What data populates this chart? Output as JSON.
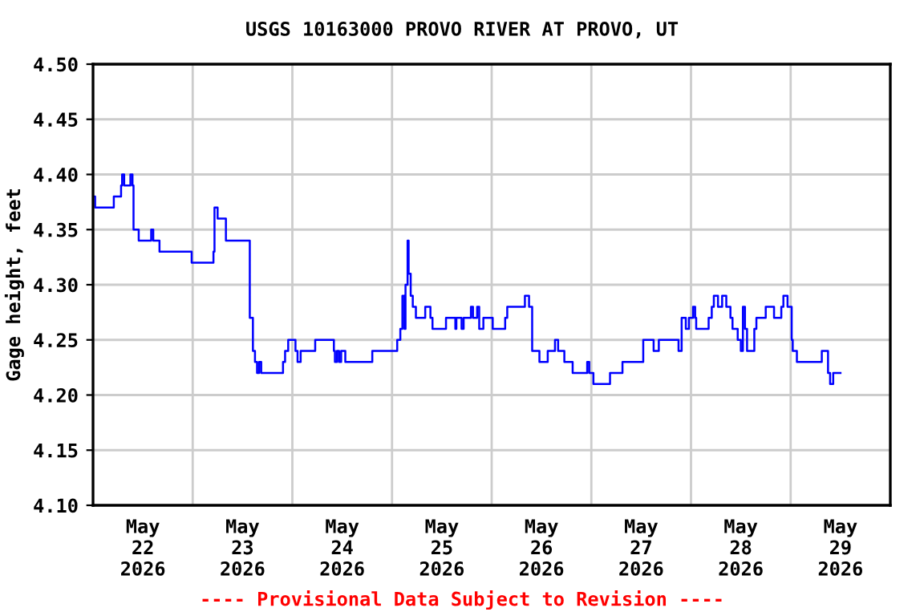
{
  "chart_data": {
    "type": "step",
    "title": "USGS 10163000 PROVO RIVER AT PROVO, UT",
    "ylabel": "Gage height, feet",
    "annotations": [
      "---- Provisional Data Subject to Revision ----"
    ],
    "xlim": [
      "2026-05-22T00:00",
      "2026-05-30T00:00"
    ],
    "xticks": [
      {
        "value": "2026-05-22T12:00",
        "label": "May\n22\n2026"
      },
      {
        "value": "2026-05-23T12:00",
        "label": "May\n23\n2026"
      },
      {
        "value": "2026-05-24T12:00",
        "label": "May\n24\n2026"
      },
      {
        "value": "2026-05-25T12:00",
        "label": "May\n25\n2026"
      },
      {
        "value": "2026-05-26T12:00",
        "label": "May\n26\n2026"
      },
      {
        "value": "2026-05-27T12:00",
        "label": "May\n27\n2026"
      },
      {
        "value": "2026-05-28T12:00",
        "label": "May\n28\n2026"
      },
      {
        "value": "2026-05-29T12:00",
        "label": "May\n29\n2026"
      },
      {
        "value": "2026-05-23T00:00",
        "label": null
      },
      {
        "value": "2026-05-24T00:00",
        "label": null
      },
      {
        "value": "2026-05-25T00:00",
        "label": null
      },
      {
        "value": "2026-05-26T00:00",
        "label": null
      },
      {
        "value": "2026-05-27T00:00",
        "label": null
      },
      {
        "value": "2026-05-28T00:00",
        "label": null
      },
      {
        "value": "2026-05-29T00:00",
        "label": null
      }
    ],
    "ylim": [
      4.1,
      4.5
    ],
    "yticks": [
      {
        "value": 4.1,
        "label": "4.10"
      },
      {
        "value": 4.15,
        "label": "4.15"
      },
      {
        "value": 4.2,
        "label": "4.20"
      },
      {
        "value": 4.25,
        "label": "4.25"
      },
      {
        "value": 4.3,
        "label": "4.30"
      },
      {
        "value": 4.35,
        "label": "4.35"
      },
      {
        "value": 4.4,
        "label": "4.40"
      },
      {
        "value": 4.45,
        "label": "4.45"
      },
      {
        "value": 4.5,
        "label": "4.50"
      }
    ],
    "grid": true,
    "legend": false,
    "series": [
      {
        "color": "#0000ff",
        "x": [
          "2026-05-22T00:15",
          "2026-05-22T00:30",
          "2026-05-22T05:00",
          "2026-05-22T06:45",
          "2026-05-22T07:00",
          "2026-05-22T07:30",
          "2026-05-22T09:00",
          "2026-05-22T09:30",
          "2026-05-22T09:45",
          "2026-05-22T11:00",
          "2026-05-22T14:00",
          "2026-05-22T14:30",
          "2026-05-22T16:00",
          "2026-05-22T23:45",
          "2026-05-23T05:00",
          "2026-05-23T05:15",
          "2026-05-23T06:00",
          "2026-05-23T08:00",
          "2026-05-23T13:45",
          "2026-05-23T14:30",
          "2026-05-23T15:00",
          "2026-05-23T15:30",
          "2026-05-23T16:00",
          "2026-05-23T16:30",
          "2026-05-23T21:45",
          "2026-05-23T22:15",
          "2026-05-23T23:00",
          "2026-05-24T00:45",
          "2026-05-24T01:15",
          "2026-05-24T02:00",
          "2026-05-24T05:30",
          "2026-05-24T10:00",
          "2026-05-24T10:15",
          "2026-05-24T10:45",
          "2026-05-24T11:15",
          "2026-05-24T11:45",
          "2026-05-24T12:45",
          "2026-05-24T19:15",
          "2026-05-25T01:15",
          "2026-05-25T02:00",
          "2026-05-25T02:30",
          "2026-05-25T03:00",
          "2026-05-25T03:15",
          "2026-05-25T03:45",
          "2026-05-25T04:00",
          "2026-05-25T04:30",
          "2026-05-25T05:00",
          "2026-05-25T05:45",
          "2026-05-25T08:00",
          "2026-05-25T09:15",
          "2026-05-25T09:45",
          "2026-05-25T13:00",
          "2026-05-25T15:15",
          "2026-05-25T15:30",
          "2026-05-25T16:45",
          "2026-05-25T17:15",
          "2026-05-25T19:00",
          "2026-05-25T19:30",
          "2026-05-25T20:30",
          "2026-05-25T21:00",
          "2026-05-25T22:00",
          "2026-05-26T00:15",
          "2026-05-26T03:15",
          "2026-05-26T03:45",
          "2026-05-26T08:00",
          "2026-05-26T09:00",
          "2026-05-26T09:45",
          "2026-05-26T11:30",
          "2026-05-26T13:30",
          "2026-05-26T15:15",
          "2026-05-26T16:00",
          "2026-05-26T17:30",
          "2026-05-26T19:30",
          "2026-05-26T23:00",
          "2026-05-26T23:30",
          "2026-05-27T00:30",
          "2026-05-27T04:30",
          "2026-05-27T07:30",
          "2026-05-27T12:30",
          "2026-05-27T15:00",
          "2026-05-27T16:15",
          "2026-05-27T21:00",
          "2026-05-27T21:45",
          "2026-05-27T22:45",
          "2026-05-27T23:30",
          "2026-05-28T00:30",
          "2026-05-28T01:00",
          "2026-05-28T01:15",
          "2026-05-28T04:15",
          "2026-05-28T05:00",
          "2026-05-28T05:30",
          "2026-05-28T06:30",
          "2026-05-28T07:30",
          "2026-05-28T08:30",
          "2026-05-28T09:30",
          "2026-05-28T10:00",
          "2026-05-28T11:15",
          "2026-05-28T12:00",
          "2026-05-28T12:30",
          "2026-05-28T13:00",
          "2026-05-28T13:30",
          "2026-05-28T15:15",
          "2026-05-28T15:45",
          "2026-05-28T18:00",
          "2026-05-28T20:00",
          "2026-05-28T21:45",
          "2026-05-28T22:15",
          "2026-05-28T23:15",
          "2026-05-29T00:15",
          "2026-05-29T00:30",
          "2026-05-29T01:30",
          "2026-05-29T07:30",
          "2026-05-29T09:00",
          "2026-05-29T09:30",
          "2026-05-29T10:15",
          "2026-05-29T12:00"
        ],
        "values": [
          4.38,
          4.37,
          4.38,
          4.39,
          4.4,
          4.39,
          4.4,
          4.39,
          4.35,
          4.34,
          4.35,
          4.34,
          4.33,
          4.32,
          4.33,
          4.37,
          4.36,
          4.34,
          4.27,
          4.24,
          4.23,
          4.22,
          4.23,
          4.22,
          4.23,
          4.24,
          4.25,
          4.24,
          4.23,
          4.24,
          4.25,
          4.24,
          4.23,
          4.24,
          4.23,
          4.24,
          4.23,
          4.24,
          4.25,
          4.26,
          4.29,
          4.26,
          4.3,
          4.34,
          4.31,
          4.29,
          4.28,
          4.27,
          4.28,
          4.27,
          4.26,
          4.27,
          4.26,
          4.27,
          4.26,
          4.27,
          4.28,
          4.27,
          4.28,
          4.26,
          4.27,
          4.26,
          4.27,
          4.28,
          4.29,
          4.28,
          4.24,
          4.23,
          4.24,
          4.25,
          4.24,
          4.23,
          4.22,
          4.23,
          4.22,
          4.21,
          4.22,
          4.23,
          4.25,
          4.24,
          4.25,
          4.24,
          4.27,
          4.26,
          4.27,
          4.28,
          4.27,
          4.26,
          4.27,
          4.28,
          4.29,
          4.28,
          4.29,
          4.28,
          4.27,
          4.26,
          4.25,
          4.24,
          4.28,
          4.26,
          4.24,
          4.26,
          4.27,
          4.28,
          4.27,
          4.28,
          4.29,
          4.28,
          4.25,
          4.24,
          4.23,
          4.24,
          4.22,
          4.21,
          4.22,
          4.22
        ]
      }
    ]
  }
}
